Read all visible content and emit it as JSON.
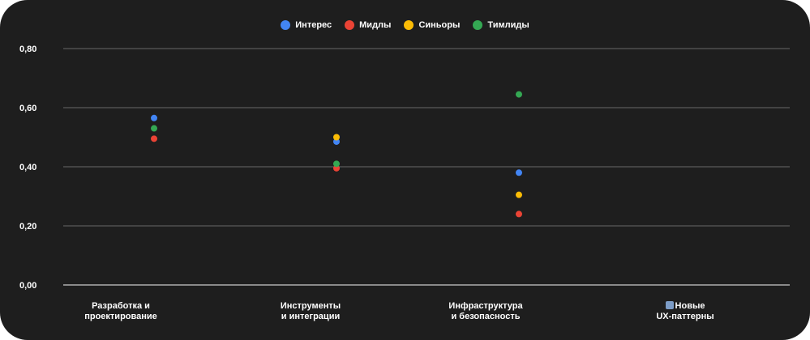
{
  "chart_data": {
    "type": "scatter",
    "categories": [
      [
        "Разработка и",
        "проектирование"
      ],
      [
        "Инструменты",
        "и интеграции"
      ],
      [
        "Инфраструктура",
        "и безопасность"
      ],
      [
        "Новые",
        "UX-паттерны"
      ]
    ],
    "series": [
      {
        "name": "Интерес",
        "color": "#4285f4",
        "values": [
          0.565,
          0.485,
          0.38,
          null
        ]
      },
      {
        "name": "Мидлы",
        "color": "#ea4335",
        "values": [
          0.495,
          0.395,
          0.24,
          null
        ]
      },
      {
        "name": "Синьоры",
        "color": "#fbbc05",
        "values": [
          null,
          0.5,
          0.305,
          null
        ]
      },
      {
        "name": "Тимлиды",
        "color": "#34a853",
        "values": [
          0.53,
          0.41,
          0.645,
          null
        ]
      }
    ],
    "y_ticks": [
      "0,00",
      "0,20",
      "0,40",
      "0,60",
      "0,80"
    ],
    "ylim": [
      0,
      0.8
    ],
    "grid": true,
    "legend_position": "top-center",
    "last_category_icon": "memo-emoji-icon"
  }
}
